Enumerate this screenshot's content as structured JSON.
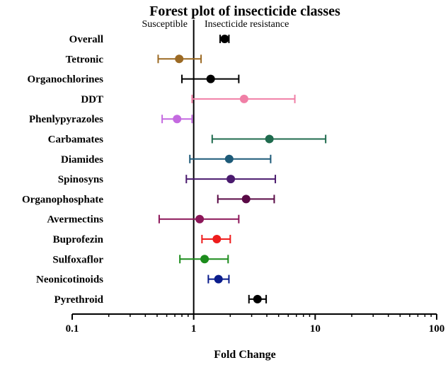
{
  "chart_data": {
    "type": "forest",
    "title": "Forest plot of insecticide classes",
    "xlabel": "Fold Change",
    "ylabel": "",
    "xscale": "log",
    "xlim": [
      0.1,
      100
    ],
    "xticks": [
      "0.1",
      "1",
      "10",
      "100"
    ],
    "reference_line": 1,
    "annotations": {
      "left": "Susceptible",
      "right": "Insecticide resistance"
    },
    "series": [
      {
        "name": "Overall",
        "estimate": 1.8,
        "lower": 1.65,
        "upper": 1.95,
        "color": "#000000"
      },
      {
        "name": "Tetronic",
        "estimate": 0.76,
        "lower": 0.51,
        "upper": 1.15,
        "color": "#9c6a24"
      },
      {
        "name": "Organochlorines",
        "estimate": 1.38,
        "lower": 0.8,
        "upper": 2.35,
        "color": "#000000"
      },
      {
        "name": "DDT",
        "estimate": 2.6,
        "lower": 0.97,
        "upper": 6.8,
        "color": "#f07fa6"
      },
      {
        "name": "Phenlypyrazoles",
        "estimate": 0.73,
        "lower": 0.55,
        "upper": 0.97,
        "color": "#c46ae0"
      },
      {
        "name": "Carbamates",
        "estimate": 4.2,
        "lower": 1.42,
        "upper": 12.2,
        "color": "#1f6b4e"
      },
      {
        "name": "Diamides",
        "estimate": 1.96,
        "lower": 0.93,
        "upper": 4.3,
        "color": "#1d5a78"
      },
      {
        "name": "Spinosyns",
        "estimate": 2.02,
        "lower": 0.87,
        "upper": 4.7,
        "color": "#4a1a6e"
      },
      {
        "name": "Organophosphate",
        "estimate": 2.7,
        "lower": 1.58,
        "upper": 4.6,
        "color": "#5a0a46"
      },
      {
        "name": "Avermectins",
        "estimate": 1.12,
        "lower": 0.52,
        "upper": 2.35,
        "color": "#8c1659"
      },
      {
        "name": "Buprofezin",
        "estimate": 1.55,
        "lower": 1.17,
        "upper": 2.0,
        "color": "#ee1c1c"
      },
      {
        "name": "Sulfoxaflor",
        "estimate": 1.23,
        "lower": 0.77,
        "upper": 1.92,
        "color": "#1c8c1c"
      },
      {
        "name": "Neonicotinoids",
        "estimate": 1.6,
        "lower": 1.32,
        "upper": 1.95,
        "color": "#0a1c8c"
      },
      {
        "name": "Pyrethroid",
        "estimate": 3.35,
        "lower": 2.85,
        "upper": 3.95,
        "color": "#000000"
      }
    ]
  }
}
